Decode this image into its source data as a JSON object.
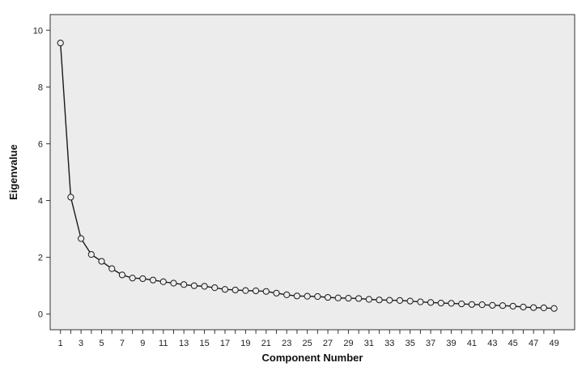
{
  "chart_data": {
    "type": "line",
    "title": "",
    "xlabel": "Component Number",
    "ylabel": "Eigenvalue",
    "x": [
      1,
      2,
      3,
      4,
      5,
      6,
      7,
      8,
      9,
      10,
      11,
      12,
      13,
      14,
      15,
      16,
      17,
      18,
      19,
      20,
      21,
      22,
      23,
      24,
      25,
      26,
      27,
      28,
      29,
      30,
      31,
      32,
      33,
      34,
      35,
      36,
      37,
      38,
      39,
      40,
      41,
      42,
      43,
      44,
      45,
      46,
      47,
      48,
      49
    ],
    "series": [
      {
        "values": [
          9.55,
          4.12,
          2.66,
          2.1,
          1.86,
          1.6,
          1.38,
          1.27,
          1.25,
          1.2,
          1.14,
          1.09,
          1.04,
          1.0,
          0.98,
          0.93,
          0.87,
          0.85,
          0.83,
          0.82,
          0.8,
          0.74,
          0.68,
          0.64,
          0.63,
          0.62,
          0.59,
          0.57,
          0.56,
          0.55,
          0.52,
          0.5,
          0.49,
          0.48,
          0.46,
          0.43,
          0.41,
          0.39,
          0.38,
          0.36,
          0.34,
          0.33,
          0.31,
          0.3,
          0.28,
          0.25,
          0.23,
          0.22,
          0.2
        ]
      }
    ],
    "xticks": [
      "1",
      "3",
      "5",
      "7",
      "9",
      "11",
      "13",
      "15",
      "17",
      "19",
      "21",
      "23",
      "25",
      "27",
      "29",
      "31",
      "33",
      "35",
      "37",
      "39",
      "41",
      "43",
      "45",
      "47",
      "49"
    ],
    "yticks": [
      "0",
      "2",
      "4",
      "6",
      "8",
      "10"
    ],
    "xlim": [
      0,
      51
    ],
    "ylim": [
      -0.55,
      10.55
    ],
    "grid": false,
    "legend": "none",
    "colors": {
      "plot_background": "#ececec",
      "line": "#1a1a1a",
      "marker_fill": "#ececec",
      "frame": "#333333"
    },
    "marker": "open-circle"
  }
}
